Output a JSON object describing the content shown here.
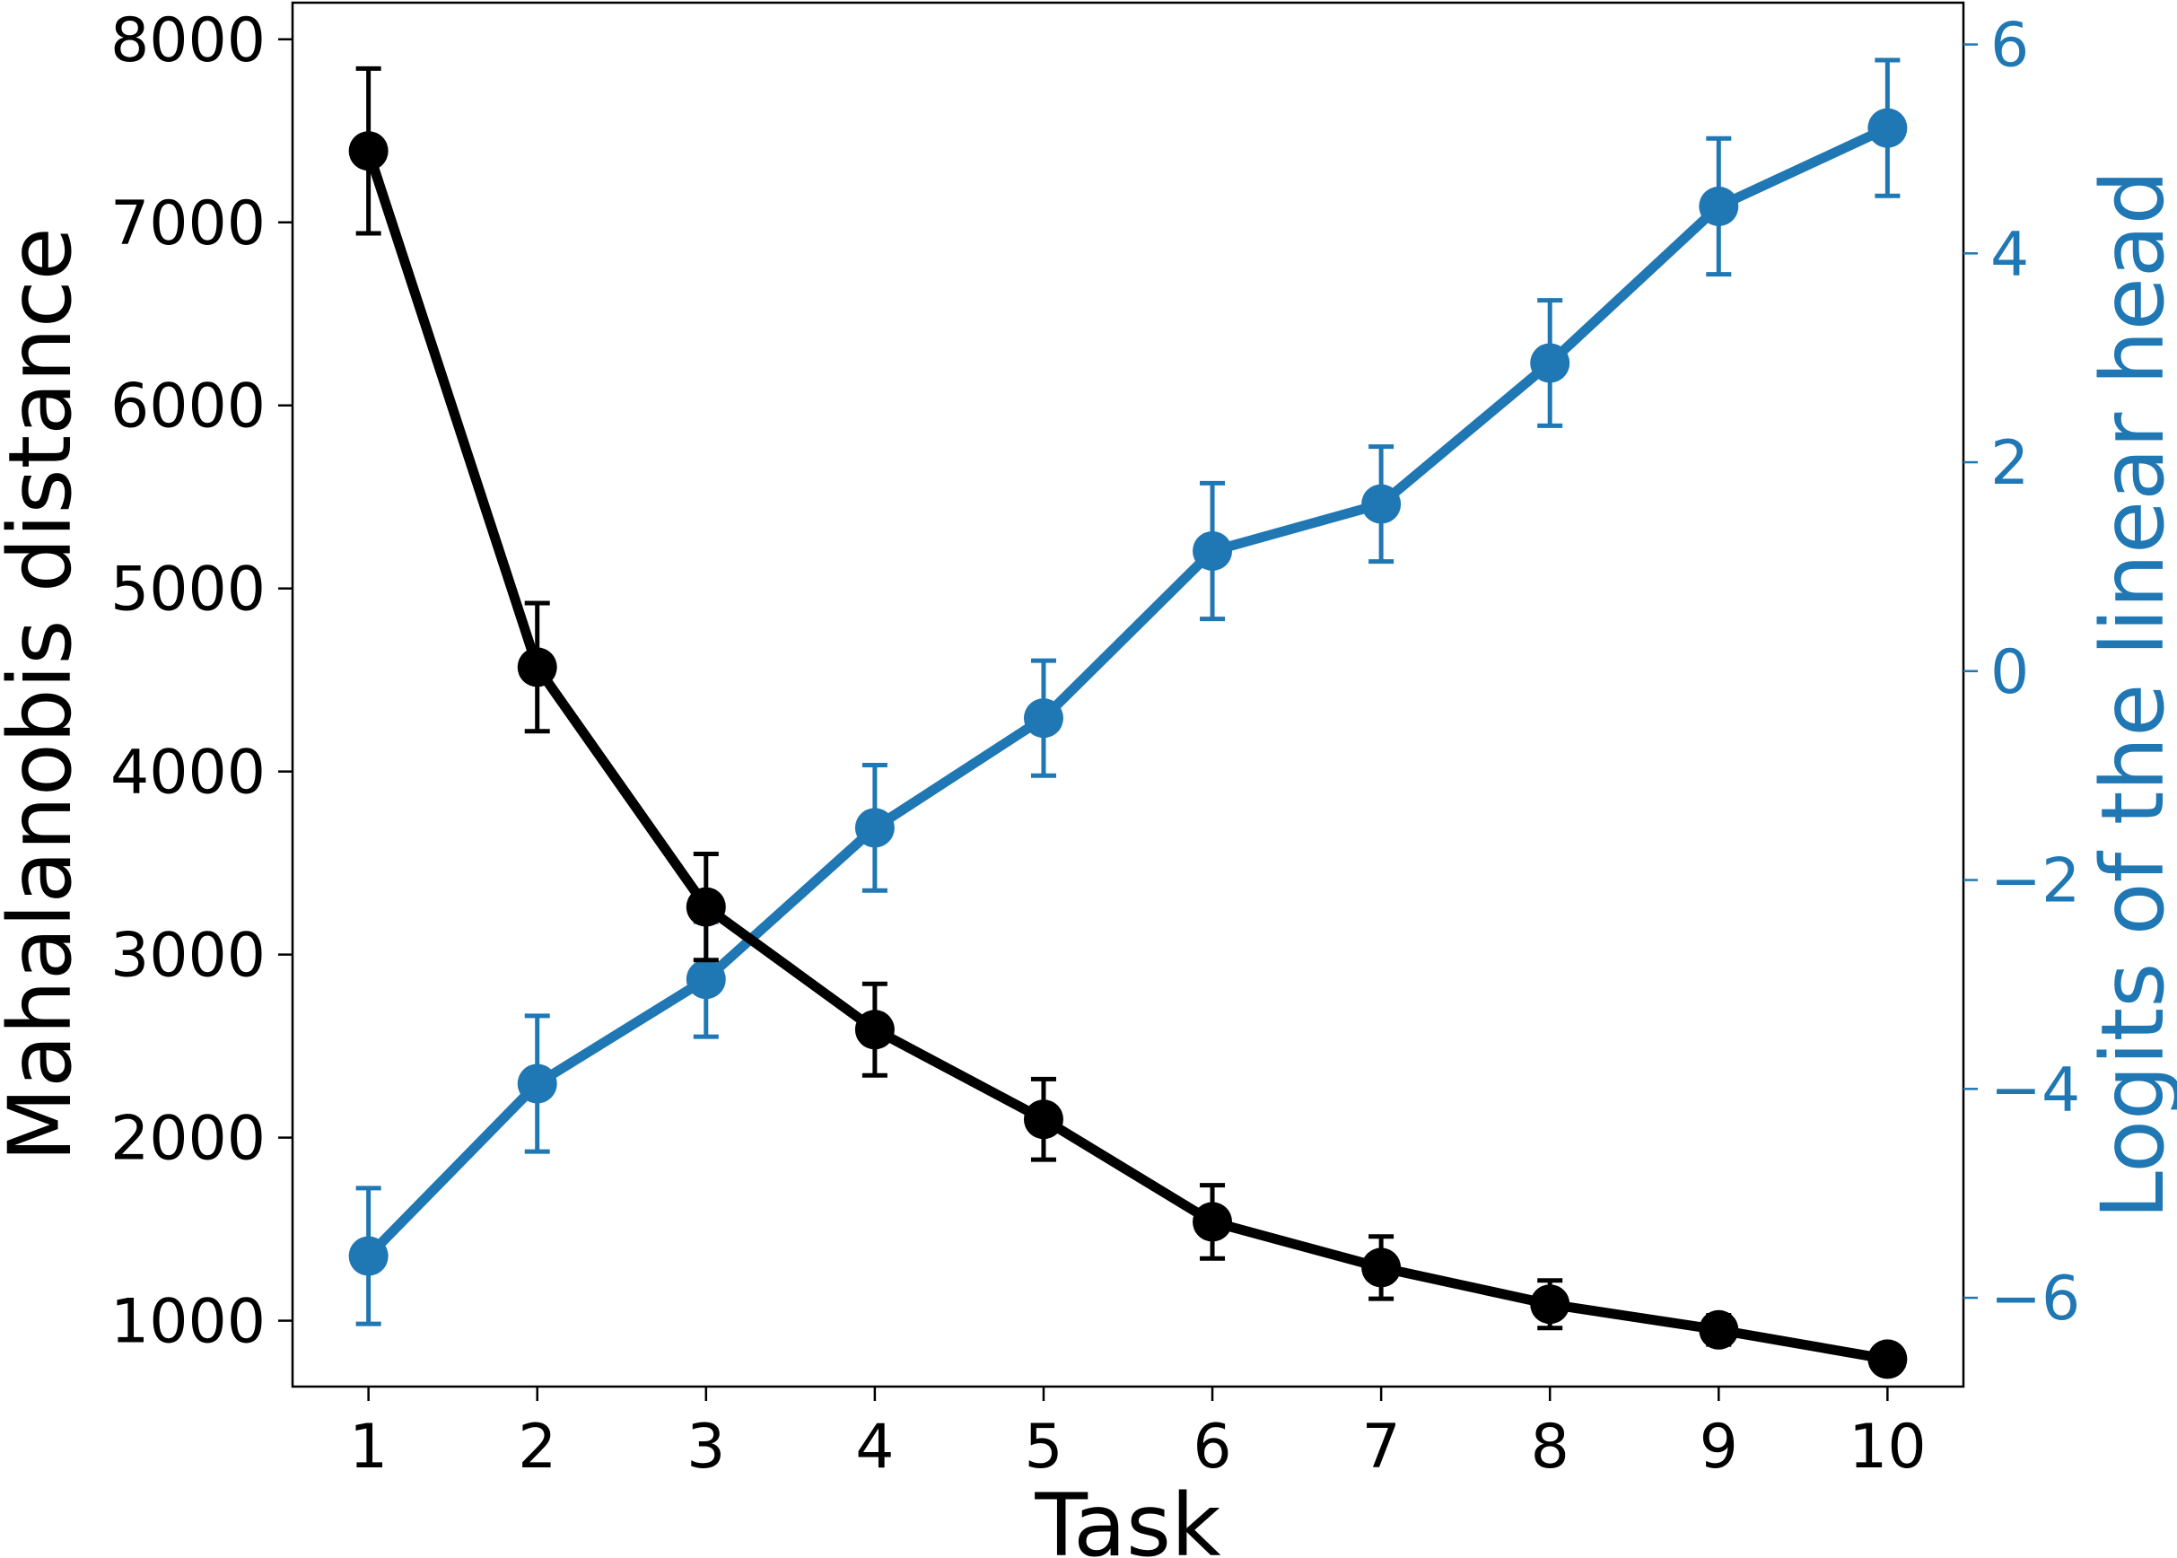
{
  "chart_data": {
    "type": "line",
    "title": "",
    "xlabel": "Task",
    "ylabel_left": "Mahalanobis distance",
    "ylabel_right": "Logits of the linear head",
    "x": [
      1,
      2,
      3,
      4,
      5,
      6,
      7,
      8,
      9,
      10
    ],
    "xlim": [
      0.55,
      10.45
    ],
    "ylim_left": [
      640,
      8200
    ],
    "ylim_right": [
      -6.85,
      6.4
    ],
    "grid": false,
    "legend": "none",
    "x_ticks": [
      1,
      2,
      3,
      4,
      5,
      6,
      7,
      8,
      9,
      10
    ],
    "y_ticks_left": [
      1000,
      2000,
      3000,
      4000,
      5000,
      6000,
      7000,
      8000
    ],
    "y_ticks_right": [
      -6,
      -4,
      -2,
      0,
      2,
      4,
      6
    ],
    "y_tick_labels_right": [
      "−6",
      "−4",
      "−2",
      "0",
      "2",
      "4",
      "6"
    ],
    "colors": {
      "left": "#000000",
      "right": "#1f77b4"
    },
    "series": [
      {
        "axis": "left",
        "color": "#000000",
        "values": [
          7390,
          4570,
          3260,
          2590,
          2100,
          1540,
          1290,
          1090,
          950,
          790
        ],
        "errors": [
          450,
          350,
          290,
          250,
          220,
          200,
          170,
          130,
          80,
          60
        ]
      },
      {
        "axis": "right",
        "color": "#1f77b4",
        "values": [
          -5.6,
          -3.95,
          -2.95,
          -1.5,
          -0.45,
          1.15,
          1.6,
          2.95,
          4.45,
          5.2
        ],
        "errors": [
          0.65,
          0.65,
          0.55,
          0.6,
          0.55,
          0.65,
          0.55,
          0.6,
          0.65,
          0.65
        ]
      }
    ]
  }
}
